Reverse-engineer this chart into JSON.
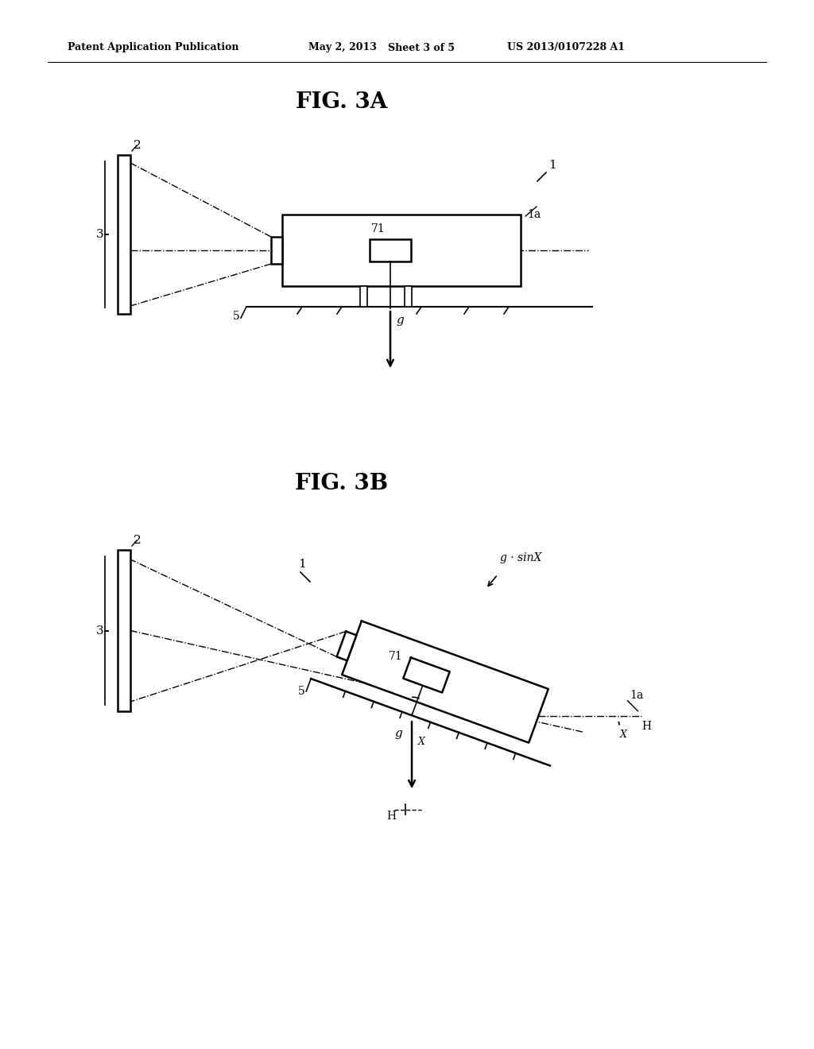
{
  "background_color": "#ffffff",
  "header_text": "Patent Application Publication",
  "header_date": "May 2, 2013",
  "header_sheet": "Sheet 3 of 5",
  "header_patent": "US 2013/0107228 A1",
  "fig3a_title": "FIG. 3A",
  "fig3b_title": "FIG. 3B"
}
